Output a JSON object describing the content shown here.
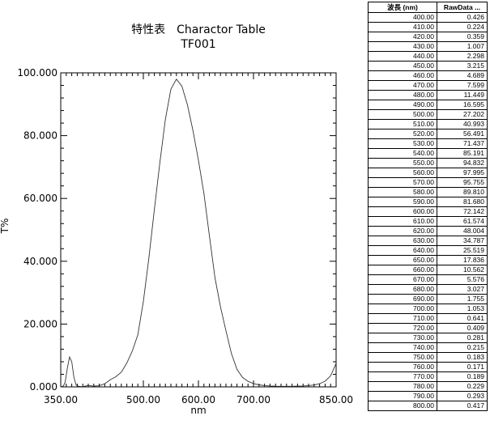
{
  "chart_data": {
    "type": "line",
    "title": "特性表　Charactor Table",
    "subtitle": "TF001",
    "xlabel": "nm",
    "ylabel": "T%",
    "xlim": [
      350,
      850
    ],
    "ylim": [
      0,
      100
    ],
    "x_ticks": [
      "350.00",
      "500.00",
      "600.00",
      "700.00",
      "850.00"
    ],
    "x_tick_values": [
      350,
      500,
      600,
      700,
      850
    ],
    "y_ticks": [
      "0.000",
      "20.000",
      "40.000",
      "60.000",
      "80.000",
      "100.000"
    ],
    "y_tick_values": [
      0,
      20,
      40,
      60,
      80,
      100
    ],
    "grid": false,
    "series": [
      {
        "x": [
          350,
          355,
          358,
          362,
          366,
          370,
          374,
          378,
          382,
          386,
          390,
          400,
          410,
          420,
          430,
          440,
          450,
          460,
          470,
          480,
          490,
          500,
          510,
          520,
          530,
          540,
          550,
          560,
          570,
          580,
          590,
          600,
          610,
          620,
          630,
          640,
          650,
          660,
          670,
          680,
          690,
          700,
          710,
          720,
          730,
          740,
          750,
          760,
          770,
          780,
          790,
          800,
          810,
          820,
          830,
          840,
          850
        ],
        "values": [
          0.0,
          0.3,
          1.5,
          6.0,
          9.5,
          8.0,
          3.0,
          0.6,
          0.2,
          0.1,
          0.1,
          0.426,
          0.224,
          0.359,
          1.007,
          2.298,
          3.215,
          4.689,
          7.599,
          11.449,
          16.595,
          27.202,
          40.993,
          56.491,
          71.437,
          85.191,
          94.832,
          97.995,
          95.755,
          89.81,
          81.68,
          72.142,
          61.574,
          48.004,
          34.787,
          25.519,
          17.836,
          10.562,
          5.576,
          3.027,
          1.755,
          1.053,
          0.641,
          0.409,
          0.281,
          0.215,
          0.183,
          0.171,
          0.189,
          0.229,
          0.293,
          0.417,
          0.6,
          1.0,
          1.8,
          3.5,
          7.5
        ]
      }
    ]
  },
  "table": {
    "headers": [
      "波長 (nm)",
      "RawData ..."
    ],
    "rows": [
      [
        "400.00",
        "0.426"
      ],
      [
        "410.00",
        "0.224"
      ],
      [
        "420.00",
        "0.359"
      ],
      [
        "430.00",
        "1.007"
      ],
      [
        "440.00",
        "2.298"
      ],
      [
        "450.00",
        "3.215"
      ],
      [
        "460.00",
        "4.689"
      ],
      [
        "470.00",
        "7.599"
      ],
      [
        "480.00",
        "11.449"
      ],
      [
        "490.00",
        "16.595"
      ],
      [
        "500.00",
        "27.202"
      ],
      [
        "510.00",
        "40.993"
      ],
      [
        "520.00",
        "56.491"
      ],
      [
        "530.00",
        "71.437"
      ],
      [
        "540.00",
        "85.191"
      ],
      [
        "550.00",
        "94.832"
      ],
      [
        "560.00",
        "97.995"
      ],
      [
        "570.00",
        "95.755"
      ],
      [
        "580.00",
        "89.810"
      ],
      [
        "590.00",
        "81.680"
      ],
      [
        "600.00",
        "72.142"
      ],
      [
        "610.00",
        "61.574"
      ],
      [
        "620.00",
        "48.004"
      ],
      [
        "630.00",
        "34.787"
      ],
      [
        "640.00",
        "25.519"
      ],
      [
        "650.00",
        "17.836"
      ],
      [
        "660.00",
        "10.562"
      ],
      [
        "670.00",
        "5.576"
      ],
      [
        "680.00",
        "3.027"
      ],
      [
        "690.00",
        "1.755"
      ],
      [
        "700.00",
        "1.053"
      ],
      [
        "710.00",
        "0.641"
      ],
      [
        "720.00",
        "0.409"
      ],
      [
        "730.00",
        "0.281"
      ],
      [
        "740.00",
        "0.215"
      ],
      [
        "750.00",
        "0.183"
      ],
      [
        "760.00",
        "0.171"
      ],
      [
        "770.00",
        "0.189"
      ],
      [
        "780.00",
        "0.229"
      ],
      [
        "790.00",
        "0.293"
      ],
      [
        "800.00",
        "0.417"
      ]
    ]
  }
}
